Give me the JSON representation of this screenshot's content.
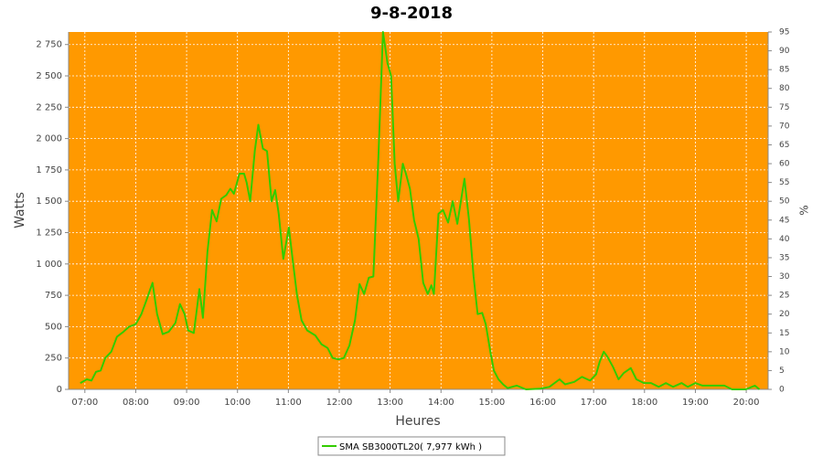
{
  "chart_data": {
    "type": "line",
    "title": "9-8-2018",
    "xlabel": "Heures",
    "ylabel": "Watts",
    "y2label": "%",
    "background": "#ff9900",
    "grid": true,
    "x": [
      6.91,
      7.04,
      7.13,
      7.22,
      7.31,
      7.4,
      7.52,
      7.63,
      7.76,
      7.87,
      8.0,
      8.11,
      8.2,
      8.33,
      8.42,
      8.53,
      8.65,
      8.78,
      8.87,
      8.96,
      9.03,
      9.14,
      9.19,
      9.25,
      9.32,
      9.41,
      9.5,
      9.59,
      9.68,
      9.78,
      9.86,
      9.93,
      10.04,
      10.13,
      10.18,
      10.25,
      10.34,
      10.41,
      10.5,
      10.58,
      10.67,
      10.74,
      10.81,
      10.9,
      11.01,
      11.08,
      11.17,
      11.26,
      11.37,
      11.53,
      11.65,
      11.77,
      11.87,
      11.98,
      12.09,
      12.2,
      12.31,
      12.4,
      12.49,
      12.58,
      12.67,
      12.77,
      12.86,
      12.95,
      13.02,
      13.09,
      13.16,
      13.25,
      13.31,
      13.39,
      13.47,
      13.56,
      13.65,
      13.74,
      13.81,
      13.86,
      13.95,
      14.04,
      14.14,
      14.23,
      14.32,
      14.46,
      14.55,
      14.64,
      14.72,
      14.81,
      14.88,
      14.97,
      15.04,
      15.13,
      15.22,
      15.31,
      15.49,
      15.67,
      15.94,
      16.13,
      16.33,
      16.44,
      16.62,
      16.77,
      16.93,
      17.05,
      17.12,
      17.2,
      17.27,
      17.38,
      17.49,
      17.59,
      17.73,
      17.84,
      17.99,
      18.13,
      18.28,
      18.42,
      18.56,
      18.73,
      18.85,
      19.0,
      19.14,
      19.36,
      19.57,
      19.72,
      19.99,
      20.17,
      20.26
    ],
    "series": [
      {
        "name": "SMA SB3000TL20( 7,977 kWh )",
        "color": "#33cc00",
        "values": [
          50,
          80,
          70,
          140,
          150,
          250,
          300,
          420,
          460,
          500,
          520,
          600,
          700,
          850,
          600,
          440,
          460,
          530,
          680,
          600,
          470,
          450,
          600,
          800,
          570,
          1100,
          1430,
          1340,
          1520,
          1550,
          1600,
          1560,
          1720,
          1720,
          1650,
          1500,
          1900,
          2110,
          1920,
          1900,
          1500,
          1590,
          1400,
          1040,
          1290,
          1050,
          750,
          550,
          470,
          430,
          360,
          330,
          250,
          240,
          250,
          350,
          550,
          840,
          760,
          890,
          900,
          1850,
          2850,
          2600,
          2500,
          1800,
          1500,
          1800,
          1720,
          1600,
          1350,
          1200,
          850,
          760,
          830,
          760,
          1400,
          1430,
          1330,
          1500,
          1320,
          1680,
          1350,
          900,
          600,
          610,
          520,
          300,
          150,
          80,
          40,
          10,
          30,
          0,
          5,
          20,
          80,
          40,
          60,
          100,
          70,
          120,
          220,
          300,
          260,
          180,
          80,
          130,
          170,
          80,
          50,
          50,
          20,
          50,
          20,
          50,
          20,
          50,
          30,
          30,
          30,
          0,
          0,
          30,
          0
        ]
      }
    ],
    "xlim": [
      6.68,
      20.43
    ],
    "xticks": [
      {
        "value": 7,
        "label": "07:00"
      },
      {
        "value": 8,
        "label": "08:00"
      },
      {
        "value": 9,
        "label": "09:00"
      },
      {
        "value": 10,
        "label": "10:00"
      },
      {
        "value": 11,
        "label": "11:00"
      },
      {
        "value": 12,
        "label": "12:00"
      },
      {
        "value": 13,
        "label": "13:00"
      },
      {
        "value": 14,
        "label": "14:00"
      },
      {
        "value": 15,
        "label": "15:00"
      },
      {
        "value": 16,
        "label": "16:00"
      },
      {
        "value": 17,
        "label": "17:00"
      },
      {
        "value": 18,
        "label": "18:00"
      },
      {
        "value": 19,
        "label": "19:00"
      },
      {
        "value": 20,
        "label": "20:00"
      }
    ],
    "ylim": [
      0,
      2850
    ],
    "yticks": [
      0,
      250,
      500,
      750,
      {
        "value": 1000,
        "label": "1 000"
      },
      {
        "value": 1250,
        "label": "1 250"
      },
      {
        "value": 1500,
        "label": "1 500"
      },
      {
        "value": 1750,
        "label": "1 750"
      },
      {
        "value": 2000,
        "label": "2 000"
      },
      {
        "value": 2250,
        "label": "2 250"
      },
      {
        "value": 2500,
        "label": "2 500"
      },
      {
        "value": 2750,
        "label": "2 750"
      }
    ],
    "y2lim": [
      0,
      95
    ],
    "y2ticks": [
      0,
      5,
      10,
      15,
      20,
      25,
      30,
      35,
      40,
      45,
      50,
      55,
      60,
      65,
      70,
      75,
      80,
      85,
      90,
      95
    ]
  }
}
